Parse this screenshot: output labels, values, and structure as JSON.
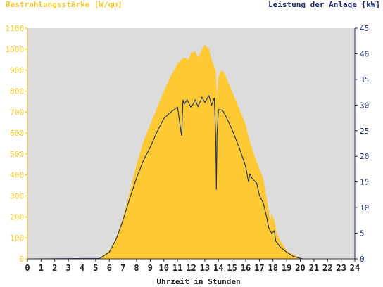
{
  "chart_data": {
    "type": "area",
    "ylabel_left": "Bestrahlungsstärke [W/qm]",
    "ylabel_right": "Leistung der Anlage [kW]",
    "xlabel": "Uhrzeit in Stunden",
    "xlim": [
      0,
      24
    ],
    "ylim_left": [
      0,
      1100
    ],
    "ylim_right": [
      0,
      45
    ],
    "x_ticks": [
      "0",
      "1",
      "2",
      "3",
      "4",
      "5",
      "6",
      "7",
      "8",
      "9",
      "10",
      "11",
      "12",
      "13",
      "14",
      "15",
      "16",
      "17",
      "18",
      "19",
      "20",
      "21",
      "22",
      "23",
      "24"
    ],
    "y_ticks_left": [
      "0",
      "100",
      "200",
      "300",
      "400",
      "500",
      "600",
      "700",
      "800",
      "900",
      "1000",
      "1100"
    ],
    "y_ticks_right": [
      "0",
      "5",
      "10",
      "15",
      "20",
      "25",
      "30",
      "35",
      "40",
      "45"
    ],
    "colors": {
      "irradiance": "#ffc933",
      "power": "#1f2f6a",
      "plot_bg": "#dcdcdc",
      "left_axis": "#f3c62b",
      "right_axis": "#1f2f6a"
    },
    "series": [
      {
        "axis": "left",
        "x": [
          5.3,
          5.6,
          6.0,
          6.5,
          7.0,
          7.5,
          8.0,
          8.5,
          9.0,
          9.5,
          10.0,
          10.5,
          11.0,
          11.3,
          11.5,
          11.8,
          12.0,
          12.3,
          12.5,
          12.8,
          13.0,
          13.3,
          13.5,
          13.8,
          13.9,
          14.0,
          14.2,
          14.4,
          14.6,
          15.0,
          15.5,
          16.0,
          16.3,
          16.6,
          17.0,
          17.3,
          17.5,
          17.7,
          17.8,
          17.9,
          18.0,
          18.1,
          18.3,
          18.5,
          18.8,
          19.0,
          19.5,
          20.0,
          20.2
        ],
        "y": [
          5,
          20,
          40,
          100,
          200,
          320,
          450,
          560,
          640,
          720,
          800,
          870,
          930,
          950,
          960,
          950,
          980,
          990,
          960,
          1000,
          1020,
          1000,
          950,
          900,
          780,
          870,
          900,
          890,
          860,
          800,
          720,
          640,
          560,
          500,
          430,
          380,
          300,
          230,
          180,
          220,
          200,
          180,
          120,
          90,
          60,
          40,
          20,
          5,
          0
        ]
      },
      {
        "axis": "right",
        "x": [
          5.3,
          5.6,
          6.0,
          6.5,
          7.0,
          7.5,
          8.0,
          8.5,
          9.0,
          9.5,
          10.0,
          10.5,
          11.0,
          11.3,
          11.4,
          11.5,
          11.7,
          12.0,
          12.3,
          12.5,
          12.8,
          13.0,
          13.3,
          13.5,
          13.7,
          13.8,
          13.85,
          13.9,
          14.0,
          14.3,
          14.6,
          15.0,
          15.5,
          16.0,
          16.2,
          16.3,
          16.5,
          16.8,
          17.0,
          17.3,
          17.5,
          17.7,
          17.9,
          18.0,
          18.1,
          18.2,
          18.5,
          19.0,
          19.5,
          20.0,
          20.2
        ],
        "y": [
          0.1,
          0.6,
          1.3,
          3.8,
          7.5,
          11.8,
          15.8,
          19.2,
          21.8,
          24.8,
          27.4,
          28.6,
          29.6,
          24.0,
          31.0,
          30.2,
          31.0,
          29.5,
          31.0,
          29.7,
          31.5,
          30.5,
          31.8,
          30.0,
          31.4,
          24.0,
          13.5,
          24.5,
          29.1,
          29.0,
          27.5,
          25.2,
          21.9,
          18.0,
          15.0,
          16.5,
          15.6,
          14.8,
          12.4,
          10.8,
          8.5,
          6.0,
          5.0,
          5.2,
          5.5,
          3.5,
          2.4,
          1.3,
          0.5,
          0.1,
          0.0
        ]
      }
    ]
  }
}
